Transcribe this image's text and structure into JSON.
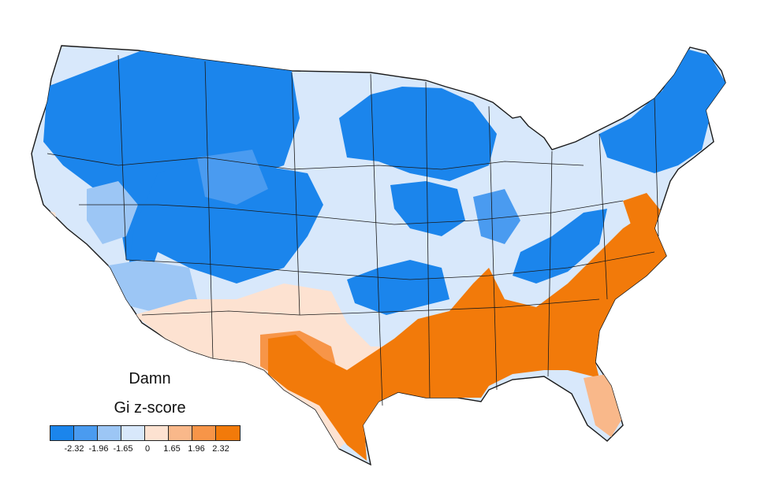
{
  "title": "Damn",
  "legend": {
    "title": "Gi z-score",
    "colors": [
      "#1b85ec",
      "#4a9bf0",
      "#9cc6f5",
      "#d8e8fb",
      "#fde2d1",
      "#f9b88a",
      "#f79548",
      "#f27a0a"
    ],
    "ticks": [
      "-2.32",
      "-1.96",
      "-1.65",
      "0",
      "1.65",
      "1.96",
      "2.32"
    ]
  },
  "palette": {
    "strong_negative": "#1b85ec",
    "weak_negative": "#d8e8fb",
    "weak_positive": "#fde2d1",
    "strong_positive": "#f27a0a",
    "state_border": "#1a1a1a"
  }
}
